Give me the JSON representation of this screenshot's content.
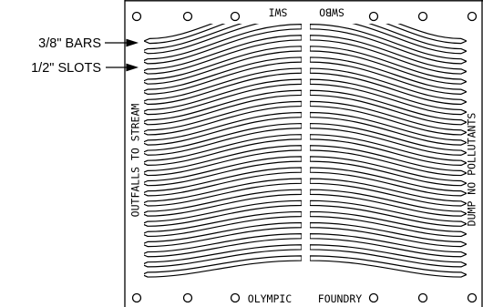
{
  "callouts": {
    "bars": "3/8\" BARS",
    "slots": "1/2\" SLOTS"
  },
  "plate": {
    "top_left_mark": "SWI",
    "top_right_mark": "SWBO",
    "left_side": "OUTFALLS TO STREAM",
    "right_side": "DUMP NO POLLUTANTS",
    "bottom_left": "OLYMPIC",
    "bottom_right": "FOUNDRY"
  },
  "colors": {
    "ink": "#000000",
    "paper": "#ffffff"
  }
}
